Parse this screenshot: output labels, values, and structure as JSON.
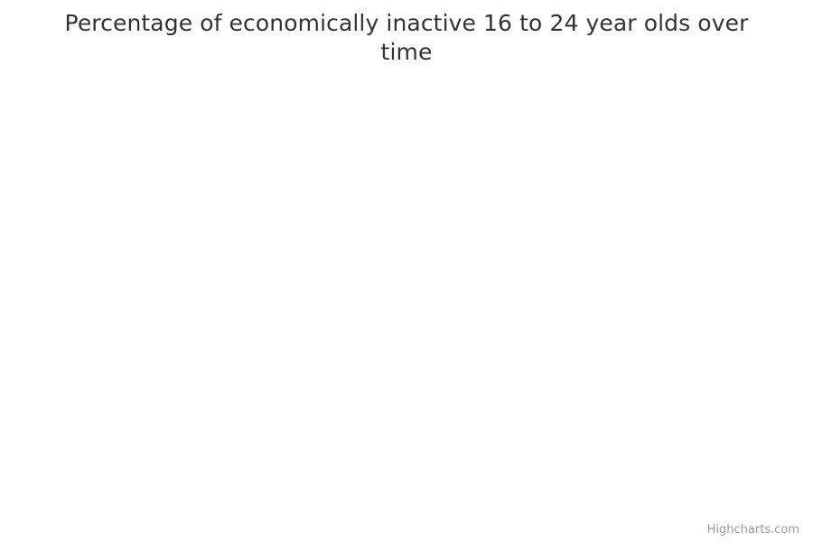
{
  "chart_data": {
    "type": "line",
    "title": "Percentage of economically inactive 16 to 24 year olds over time",
    "series": []
  },
  "credits": {
    "text": "Highcharts.com"
  }
}
